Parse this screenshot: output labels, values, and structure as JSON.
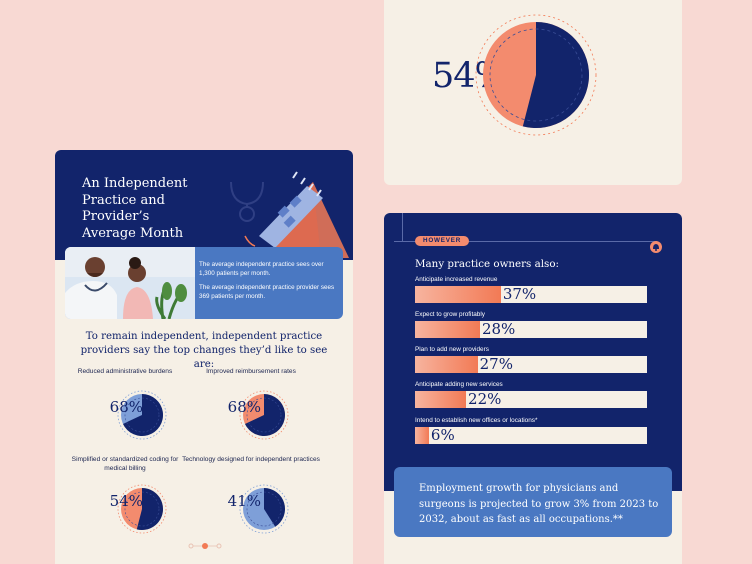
{
  "left_card": {
    "title_lines": [
      "An Independent",
      "Practice and Provider’s",
      "Average Month"
    ],
    "stat_1": "The average independent practice sees over 1,300 patients per month.",
    "stat_2": "The average independent practice provider sees 369 patients per month.",
    "subtitle": "To remain independent, independent practice providers say the top changes they’d like to see are:",
    "donuts": [
      {
        "label": "Reduced administrative burdens",
        "pct": "68%",
        "value": 68,
        "style": "blue"
      },
      {
        "label": "Improved reimbursement rates",
        "pct": "68%",
        "value": 68,
        "style": "orange"
      },
      {
        "label": "Simplified or standardized coding for medical billing",
        "pct": "54%",
        "value": 54,
        "style": "orange"
      },
      {
        "label": "Technology designed for independent practices",
        "pct": "41%",
        "value": 41,
        "style": "blue"
      }
    ]
  },
  "top_right_card": {
    "pct": "54%",
    "value": 54
  },
  "bottom_right_card": {
    "badge": "HOWEVER",
    "heading": "Many practice owners also:",
    "bars": [
      {
        "label": "Anticipate increased revenue",
        "pct": "37%",
        "value": 37
      },
      {
        "label": "Expect to grow profitably",
        "pct": "28%",
        "value": 28
      },
      {
        "label": "Plan to add new providers",
        "pct": "27%",
        "value": 27
      },
      {
        "label": "Anticipate adding new services",
        "pct": "22%",
        "value": 22
      },
      {
        "label": "Intend to establish new offices or locations*",
        "pct": "6%",
        "value": 6
      }
    ],
    "note": "Employment growth for physicians and surgeons is projected to grow 3% from 2023 to 2032, about as fast as all occupations.**"
  },
  "colors": {
    "navy": "#12246b",
    "coral": "#f38b6e",
    "blue": "#4a78c2",
    "cream": "#f6f0e6",
    "pink_bg": "#f8d9d3"
  }
}
